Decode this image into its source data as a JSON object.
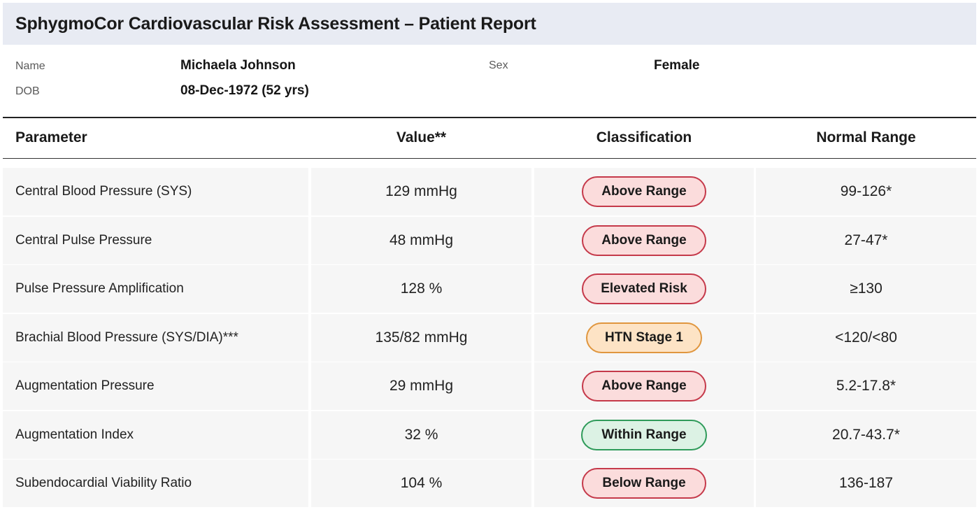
{
  "report": {
    "title": "SphygmoCor Cardiovascular Risk Assessment – Patient Report"
  },
  "patient": {
    "name_label": "Name",
    "name": "Michaela Johnson",
    "sex_label": "Sex",
    "sex": "Female",
    "dob_label": "DOB",
    "dob": "08-Dec-1972 (52 yrs)"
  },
  "table": {
    "headers": {
      "parameter": "Parameter",
      "value": "Value**",
      "classification": "Classification",
      "normal_range": "Normal Range"
    },
    "rows": [
      {
        "parameter": "Central Blood Pressure (SYS)",
        "value": "129 mmHg",
        "classification": "Above Range",
        "status": "red",
        "range": "99-126*"
      },
      {
        "parameter": "Central Pulse Pressure",
        "value": "48 mmHg",
        "classification": "Above Range",
        "status": "red",
        "range": "27-47*"
      },
      {
        "parameter": "Pulse Pressure Amplification",
        "value": "128 %",
        "classification": "Elevated Risk",
        "status": "red",
        "range": "≥130"
      },
      {
        "parameter": "Brachial Blood Pressure (SYS/DIA)***",
        "value": "135/82 mmHg",
        "classification": "HTN Stage 1",
        "status": "orange",
        "range": "<120/<80"
      },
      {
        "parameter": "Augmentation Pressure",
        "value": "29 mmHg",
        "classification": "Above Range",
        "status": "red",
        "range": "5.2-17.8*"
      },
      {
        "parameter": "Augmentation Index",
        "value": "32 %",
        "classification": "Within Range",
        "status": "green",
        "range": "20.7-43.7*"
      },
      {
        "parameter": "Subendocardial Viability Ratio",
        "value": "104 %",
        "classification": "Below Range",
        "status": "red",
        "range": "136-187"
      }
    ]
  },
  "colors": {
    "red_fill": "#fbdcdc",
    "red_border": "#c5394a",
    "orange_fill": "#fde3c5",
    "orange_border": "#e0963e",
    "green_fill": "#dcf2e4",
    "green_border": "#2f9b5a"
  }
}
